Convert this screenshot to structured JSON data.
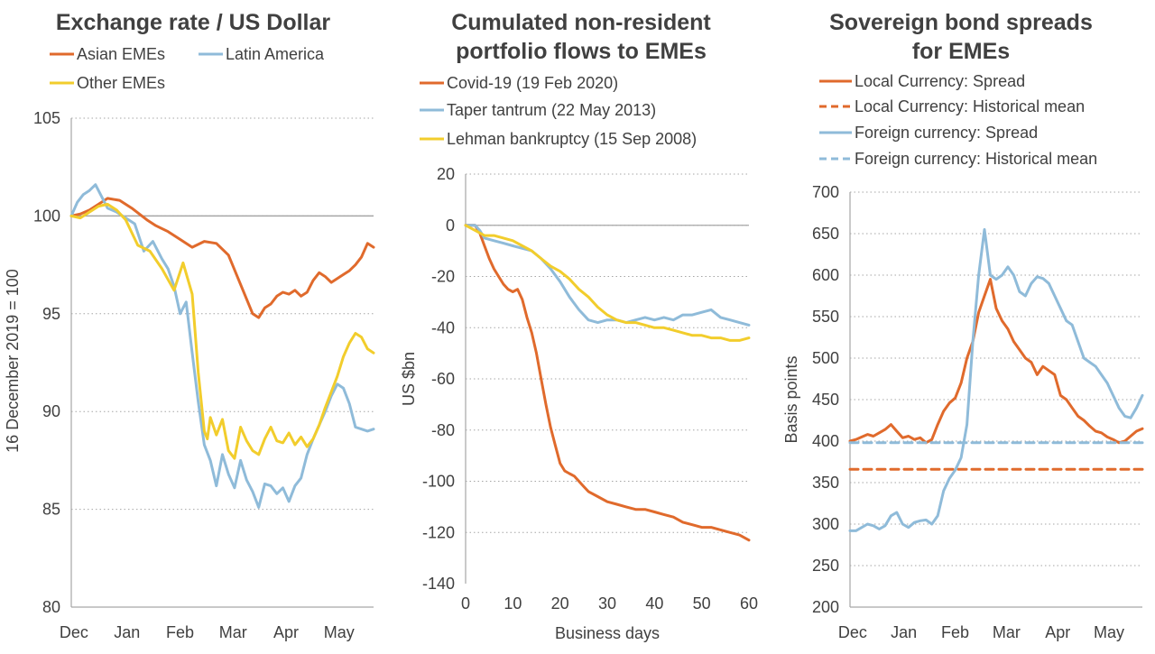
{
  "chart_data": [
    {
      "type": "line",
      "title": "Exchange rate / US Dollar",
      "ylabel": "16 December 2019 = 100",
      "xlabel": "",
      "ylim": [
        80,
        105
      ],
      "yticks": [
        80,
        85,
        90,
        95,
        100,
        105
      ],
      "x_tick_labels": [
        "Dec",
        "Jan",
        "Feb",
        "Mar",
        "Apr",
        "May"
      ],
      "reference_line": 100,
      "x_range": [
        0,
        100
      ],
      "series": [
        {
          "name": "Asian EMEs",
          "color": "#e06a2c",
          "x": [
            0,
            3,
            6,
            9,
            12,
            16,
            20,
            25,
            28,
            32,
            36,
            40,
            44,
            48,
            52,
            56,
            60,
            62,
            64,
            66,
            68,
            70,
            72,
            74,
            76,
            78,
            80,
            82,
            84,
            86,
            88,
            90,
            92,
            94,
            96,
            98,
            100
          ],
          "y": [
            100,
            100.1,
            100.3,
            100.6,
            100.9,
            100.8,
            100.4,
            99.8,
            99.5,
            99.2,
            98.8,
            98.4,
            98.7,
            98.6,
            98.0,
            96.5,
            95.0,
            94.8,
            95.3,
            95.5,
            95.9,
            96.1,
            96.0,
            96.2,
            95.9,
            96.1,
            96.7,
            97.1,
            96.9,
            96.6,
            96.8,
            97.0,
            97.2,
            97.5,
            97.9,
            98.6,
            98.4
          ]
        },
        {
          "name": "Latin America",
          "color": "#8fbbd9",
          "x": [
            0,
            2,
            4,
            6,
            8,
            10,
            12,
            15,
            18,
            21,
            24,
            27,
            30,
            32,
            34,
            36,
            38,
            40,
            42,
            44,
            46,
            48,
            50,
            52,
            54,
            56,
            58,
            60,
            62,
            64,
            66,
            68,
            70,
            72,
            74,
            76,
            78,
            80,
            82,
            84,
            86,
            88,
            90,
            92,
            94,
            96,
            98,
            100
          ],
          "y": [
            100,
            100.7,
            101.1,
            101.3,
            101.6,
            101.0,
            100.4,
            100.2,
            99.9,
            99.6,
            98.2,
            98.7,
            97.8,
            97.3,
            96.4,
            95.0,
            95.6,
            93.0,
            90.5,
            88.3,
            87.5,
            86.2,
            87.8,
            86.8,
            86.1,
            87.5,
            86.5,
            85.9,
            85.1,
            86.3,
            86.2,
            85.8,
            86.1,
            85.4,
            86.2,
            86.6,
            87.8,
            88.6,
            89.3,
            90.0,
            90.8,
            91.4,
            91.2,
            90.4,
            89.2,
            89.1,
            89.0,
            89.1
          ]
        },
        {
          "name": "Other EMEs",
          "color": "#f2cd2c",
          "x": [
            0,
            3,
            6,
            9,
            12,
            15,
            18,
            22,
            26,
            30,
            34,
            37,
            40,
            42,
            44,
            45,
            46,
            48,
            50,
            52,
            54,
            56,
            58,
            60,
            62,
            64,
            66,
            68,
            70,
            72,
            74,
            76,
            78,
            80,
            82,
            84,
            86,
            88,
            90,
            92,
            94,
            96,
            98,
            100
          ],
          "y": [
            100,
            99.9,
            100.2,
            100.5,
            100.6,
            100.3,
            99.8,
            98.5,
            98.2,
            97.3,
            96.2,
            97.6,
            96.0,
            92.0,
            89.0,
            88.6,
            89.7,
            88.8,
            89.6,
            88.0,
            87.6,
            89.2,
            88.5,
            88.0,
            87.8,
            88.6,
            89.2,
            88.5,
            88.4,
            88.9,
            88.3,
            88.7,
            88.2,
            88.6,
            89.3,
            90.2,
            91.0,
            91.8,
            92.8,
            93.5,
            94.0,
            93.8,
            93.2,
            93.0
          ]
        }
      ],
      "legend": [
        "Asian EMEs",
        "Latin America",
        "Other EMEs"
      ]
    },
    {
      "type": "line",
      "title": "Cumulated non-resident portfolio flows to EMEs",
      "ylabel": "US $bn",
      "xlabel": "Business days",
      "xlim": [
        0,
        60
      ],
      "ylim": [
        -140,
        20
      ],
      "xticks": [
        0,
        10,
        20,
        30,
        40,
        50,
        60
      ],
      "yticks": [
        -140,
        -120,
        -100,
        -80,
        -60,
        -40,
        -20,
        0,
        20
      ],
      "series": [
        {
          "name": "Covid-19 (19 Feb 2020)",
          "color": "#e06a2c",
          "x": [
            0,
            2,
            3,
            4,
            5,
            6,
            7,
            8,
            9,
            10,
            11,
            12,
            13,
            14,
            15,
            16,
            17,
            18,
            19,
            20,
            21,
            22,
            23,
            24,
            25,
            26,
            28,
            30,
            32,
            34,
            36,
            38,
            40,
            42,
            44,
            46,
            48,
            50,
            52,
            54,
            56,
            58,
            60
          ],
          "y": [
            0,
            0,
            -3,
            -8,
            -13,
            -17,
            -20,
            -23,
            -25,
            -26,
            -25,
            -29,
            -36,
            -42,
            -50,
            -60,
            -70,
            -79,
            -86,
            -93,
            -96,
            -97,
            -98,
            -100,
            -102,
            -104,
            -106,
            -108,
            -109,
            -110,
            -111,
            -111,
            -112,
            -113,
            -114,
            -116,
            -117,
            -118,
            -118,
            -119,
            -120,
            -121,
            -123
          ]
        },
        {
          "name": "Taper tantrum (22 May 2013)",
          "color": "#8fbbd9",
          "x": [
            0,
            2,
            3,
            4,
            6,
            8,
            10,
            12,
            14,
            16,
            18,
            20,
            22,
            24,
            26,
            28,
            30,
            32,
            34,
            36,
            38,
            40,
            42,
            44,
            46,
            48,
            50,
            52,
            54,
            56,
            58,
            60
          ],
          "y": [
            0,
            0,
            -2,
            -5,
            -6,
            -7,
            -8,
            -9,
            -10,
            -13,
            -17,
            -22,
            -28,
            -33,
            -37,
            -38,
            -37,
            -37,
            -38,
            -37,
            -36,
            -37,
            -36,
            -37,
            -35,
            -35,
            -34,
            -33,
            -36,
            -37,
            -38,
            -39
          ]
        },
        {
          "name": "Lehman bankruptcy (15 Sep 2008)",
          "color": "#f2cd2c",
          "x": [
            0,
            2,
            4,
            6,
            8,
            10,
            12,
            14,
            16,
            18,
            20,
            22,
            24,
            26,
            28,
            30,
            32,
            34,
            36,
            38,
            40,
            42,
            44,
            46,
            48,
            50,
            52,
            54,
            56,
            58,
            60
          ],
          "y": [
            0,
            -2,
            -4,
            -4,
            -5,
            -6,
            -8,
            -10,
            -13,
            -16,
            -18,
            -21,
            -25,
            -28,
            -32,
            -35,
            -37,
            -38,
            -38,
            -39,
            -40,
            -40,
            -41,
            -42,
            -43,
            -43,
            -44,
            -44,
            -45,
            -45,
            -44
          ]
        }
      ],
      "legend": [
        "Covid-19 (19 Feb 2020)",
        "Taper tantrum (22 May 2013)",
        "Lehman bankruptcy (15 Sep 2008)"
      ]
    },
    {
      "type": "line",
      "title": "Sovereign bond spreads for EMEs",
      "ylabel": "Basis points",
      "xlabel": "",
      "ylim": [
        200,
        700
      ],
      "yticks": [
        200,
        250,
        300,
        350,
        400,
        450,
        500,
        550,
        600,
        650,
        700
      ],
      "x_tick_labels": [
        "Dec",
        "Jan",
        "Feb",
        "Mar",
        "Apr",
        "May"
      ],
      "x_range": [
        0,
        100
      ],
      "series": [
        {
          "name": "Local Currency: Spread",
          "color": "#e06a2c",
          "style": "solid",
          "x": [
            0,
            2,
            4,
            6,
            8,
            10,
            12,
            14,
            16,
            18,
            20,
            22,
            24,
            26,
            28,
            30,
            32,
            34,
            36,
            38,
            40,
            42,
            44,
            46,
            48,
            50,
            52,
            54,
            56,
            58,
            60,
            62,
            64,
            66,
            68,
            70,
            72,
            74,
            76,
            78,
            80,
            82,
            84,
            86,
            88,
            90,
            92,
            94,
            96,
            98,
            100
          ],
          "y": [
            400,
            402,
            405,
            408,
            406,
            410,
            414,
            420,
            412,
            404,
            406,
            402,
            404,
            398,
            402,
            420,
            436,
            446,
            452,
            470,
            500,
            520,
            555,
            575,
            595,
            560,
            545,
            535,
            520,
            510,
            500,
            495,
            480,
            490,
            485,
            480,
            455,
            450,
            440,
            430,
            425,
            418,
            412,
            410,
            405,
            402,
            398,
            400,
            406,
            412,
            415
          ]
        },
        {
          "name": "Local Currency: Historical mean",
          "color": "#e06a2c",
          "style": "dashed",
          "x": [
            0,
            100
          ],
          "y": [
            366,
            366
          ]
        },
        {
          "name": "Foreign currency: Spread",
          "color": "#8fbbd9",
          "style": "solid",
          "x": [
            0,
            2,
            4,
            6,
            8,
            10,
            12,
            14,
            16,
            18,
            20,
            22,
            24,
            26,
            28,
            30,
            32,
            34,
            36,
            38,
            40,
            42,
            44,
            46,
            48,
            50,
            52,
            54,
            56,
            58,
            60,
            62,
            64,
            66,
            68,
            70,
            72,
            74,
            76,
            78,
            80,
            82,
            84,
            86,
            88,
            90,
            92,
            94,
            96,
            98,
            100
          ],
          "y": [
            292,
            292,
            296,
            300,
            298,
            294,
            298,
            310,
            314,
            300,
            296,
            302,
            304,
            305,
            300,
            310,
            340,
            355,
            365,
            380,
            420,
            520,
            600,
            655,
            600,
            595,
            600,
            610,
            600,
            580,
            575,
            590,
            598,
            596,
            590,
            575,
            560,
            545,
            540,
            520,
            500,
            495,
            490,
            480,
            470,
            455,
            440,
            430,
            428,
            440,
            455
          ]
        },
        {
          "name": "Foreign currency: Historical mean",
          "color": "#8fbbd9",
          "style": "dashed",
          "x": [
            0,
            100
          ],
          "y": [
            398,
            398
          ]
        }
      ],
      "legend": [
        "Local Currency: Spread",
        "Local Currency: Historical mean",
        "Foreign currency: Spread",
        "Foreign currency: Historical mean"
      ]
    }
  ],
  "panels": [
    {
      "title_lines": [
        "Exchange rate / US Dollar"
      ]
    },
    {
      "title_lines": [
        "Cumulated non-resident",
        "portfolio flows to EMEs"
      ]
    },
    {
      "title_lines": [
        "Sovereign bond spreads",
        "for EMEs"
      ]
    }
  ]
}
